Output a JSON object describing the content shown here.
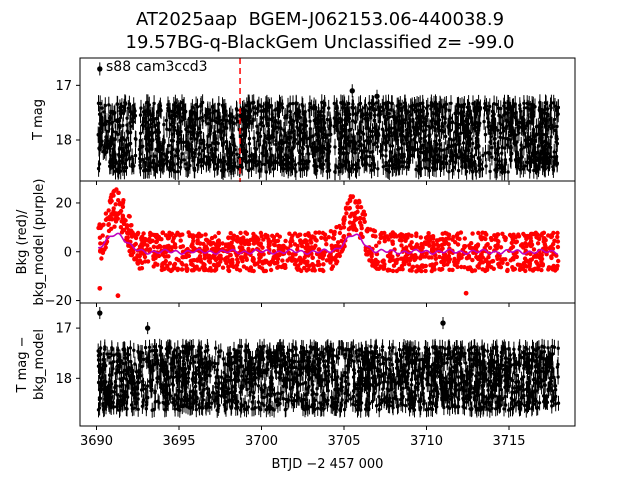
{
  "title_line1": "AT2025aap  BGEM-J062153.06-440038.9",
  "title_line2": "19.57BG-q-BlackGem Unclassified z= -99.0",
  "chart_data": [
    {
      "type": "scatter",
      "panel": "top",
      "ylabel": "T mag",
      "annotation": "s88 cam3ccd3",
      "y_inverted": true,
      "ylim": [
        18.75,
        16.5
      ],
      "xlim": [
        3689,
        3719
      ],
      "yticks": [
        17,
        18
      ],
      "vline_x": 3698.7,
      "series": [
        {
          "color": "#000000",
          "x_range": [
            3690.1,
            3718.0
          ],
          "y_center": 17.95,
          "y_spread": 0.75,
          "errorbar": 0.15,
          "gaps": [
            [
              3692.4,
              3692.6
            ],
            [
              3704.2,
              3704.4
            ]
          ]
        }
      ],
      "outliers": [
        {
          "x": 3690.2,
          "y": 16.7
        },
        {
          "x": 3705.5,
          "y": 17.1
        },
        {
          "x": 3707.0,
          "y": 17.2
        }
      ]
    },
    {
      "type": "scatter",
      "panel": "middle",
      "ylabel": "Bkg (red)/\nbkg_model (purple)",
      "ylim": [
        -21,
        29
      ],
      "xlim": [
        3689,
        3719
      ],
      "yticks": [
        -20,
        0,
        20
      ],
      "series": [
        {
          "name": "Bkg",
          "color": "#ff0000",
          "baseline": 0,
          "spread": 8
        },
        {
          "name": "bkg_model",
          "color": "#bf00bf"
        }
      ],
      "bumps": [
        {
          "center": 3691.2,
          "height": 18,
          "width": 0.8
        },
        {
          "center": 3705.6,
          "height": 16,
          "width": 0.8
        }
      ],
      "outliers": [
        {
          "x": 3690.2,
          "y": -15
        },
        {
          "x": 3691.3,
          "y": -18
        },
        {
          "x": 3712.4,
          "y": -17
        }
      ]
    },
    {
      "type": "scatter",
      "panel": "bottom",
      "ylabel": "T mag −\nbkg_model",
      "y_inverted": true,
      "ylim": [
        18.95,
        16.5
      ],
      "xlim": [
        3689,
        3719
      ],
      "yticks": [
        17,
        18
      ],
      "xticks": [
        3690,
        3695,
        3700,
        3705,
        3710,
        3715
      ],
      "xlabel": "BTJD −2 457 000",
      "series": [
        {
          "color": "#000000",
          "x_range": [
            3690.1,
            3718.0
          ],
          "y_center": 18.0,
          "y_spread": 0.75,
          "errorbar": 0.15
        }
      ],
      "outliers": [
        {
          "x": 3690.2,
          "y": 16.7
        },
        {
          "x": 3693.1,
          "y": 17.0
        },
        {
          "x": 3711.0,
          "y": 16.9
        }
      ]
    }
  ]
}
